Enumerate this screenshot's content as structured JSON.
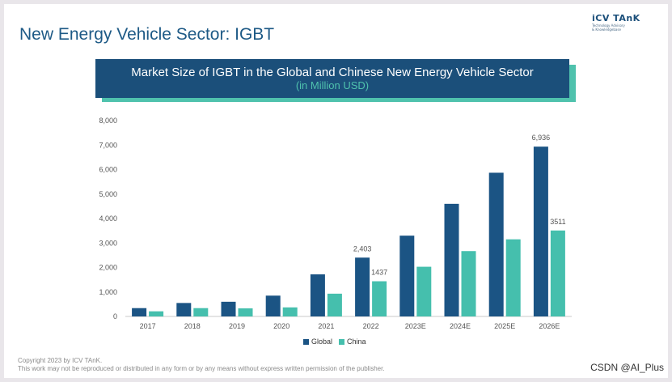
{
  "slide": {
    "title": "New Energy Vehicle Sector: IGBT",
    "logo": {
      "main": "iCV TAnK",
      "sub1": "Technology Advisory",
      "sub2": "& Knowledgebase"
    },
    "footer_line1": "Copyright 2023 by ICV TAnK.",
    "footer_line2": "This work may not be reproduced or distributed in any form or by any means without express written permission of the publisher.",
    "watermark": "CSDN @AI_Plus"
  },
  "colors": {
    "global": "#1b5484",
    "china": "#45bfad",
    "banner": "#1b4f7a",
    "accent": "#4fc2ad"
  },
  "chart_data": {
    "type": "bar",
    "title": "Market Size of IGBT in the Global and Chinese New Energy Vehicle Sector",
    "subtitle": "(in Million USD)",
    "categories": [
      "2017",
      "2018",
      "2019",
      "2020",
      "2021",
      "2022",
      "2023E",
      "2024E",
      "2025E",
      "2026E"
    ],
    "series": [
      {
        "name": "Global",
        "values": [
          340,
          550,
          600,
          850,
          1720,
          2403,
          3300,
          4600,
          5870,
          6936
        ]
      },
      {
        "name": "China",
        "values": [
          210,
          340,
          330,
          370,
          930,
          1437,
          2030,
          2670,
          3150,
          3511
        ]
      }
    ],
    "data_labels": [
      {
        "series": 0,
        "index": 5,
        "text": "2,403"
      },
      {
        "series": 1,
        "index": 5,
        "text": "1437"
      },
      {
        "series": 0,
        "index": 9,
        "text": "6,936"
      },
      {
        "series": 1,
        "index": 9,
        "text": "3511"
      }
    ],
    "ylim": [
      0,
      8000
    ],
    "yticks": [
      0,
      1000,
      2000,
      3000,
      4000,
      5000,
      6000,
      7000,
      8000
    ],
    "ytick_labels": [
      "0",
      "1,000",
      "2,000",
      "3,000",
      "4,000",
      "5,000",
      "6,000",
      "7,000",
      "8,000"
    ],
    "grid": false,
    "legend_position": "bottom"
  }
}
